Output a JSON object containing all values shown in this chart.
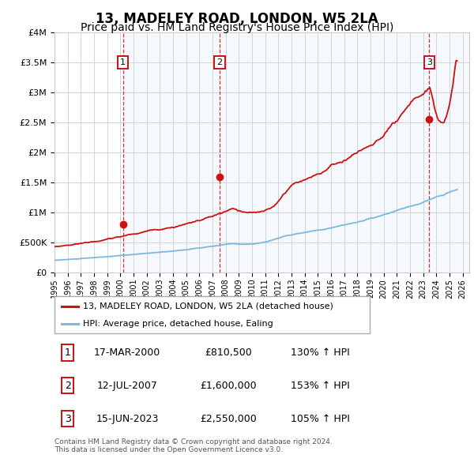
{
  "title": "13, MADELEY ROAD, LONDON, W5 2LA",
  "subtitle": "Price paid vs. HM Land Registry's House Price Index (HPI)",
  "title_fontsize": 12,
  "subtitle_fontsize": 10,
  "hpi_color": "#7ab8e0",
  "price_color": "#cc1111",
  "marker_color": "#cc1111",
  "grid_color": "#cccccc",
  "shade_color": "#ccddf0",
  "ylim": [
    0,
    4000000
  ],
  "xlim_start": 1995.0,
  "xlim_end": 2026.5,
  "sale_points": [
    {
      "year": 2000.208,
      "price": 810500,
      "label": "1"
    },
    {
      "year": 2007.533,
      "price": 1600000,
      "label": "2"
    },
    {
      "year": 2023.458,
      "price": 2550000,
      "label": "3"
    }
  ],
  "legend_entries": [
    {
      "label": "13, MADELEY ROAD, LONDON, W5 2LA (detached house)",
      "color": "#cc1111"
    },
    {
      "label": "HPI: Average price, detached house, Ealing",
      "color": "#7ab8e0"
    }
  ],
  "table_rows": [
    {
      "num": "1",
      "date": "17-MAR-2000",
      "price": "£810,500",
      "hpi": "130% ↑ HPI"
    },
    {
      "num": "2",
      "date": "12-JUL-2007",
      "price": "£1,600,000",
      "hpi": "153% ↑ HPI"
    },
    {
      "num": "3",
      "date": "15-JUN-2023",
      "price": "£2,550,000",
      "hpi": "105% ↑ HPI"
    }
  ],
  "footer": "Contains HM Land Registry data © Crown copyright and database right 2024.\nThis data is licensed under the Open Government Licence v3.0.",
  "ytick_labels": [
    "£0",
    "£500K",
    "£1M",
    "£1.5M",
    "£2M",
    "£2.5M",
    "£3M",
    "£3.5M",
    "£4M"
  ],
  "ytick_values": [
    0,
    500000,
    1000000,
    1500000,
    2000000,
    2500000,
    3000000,
    3500000,
    4000000
  ],
  "xtick_years": [
    1995,
    1996,
    1997,
    1998,
    1999,
    2000,
    2001,
    2002,
    2003,
    2004,
    2005,
    2006,
    2007,
    2008,
    2009,
    2010,
    2011,
    2012,
    2013,
    2014,
    2015,
    2016,
    2017,
    2018,
    2019,
    2020,
    2021,
    2022,
    2023,
    2024,
    2025,
    2026
  ]
}
